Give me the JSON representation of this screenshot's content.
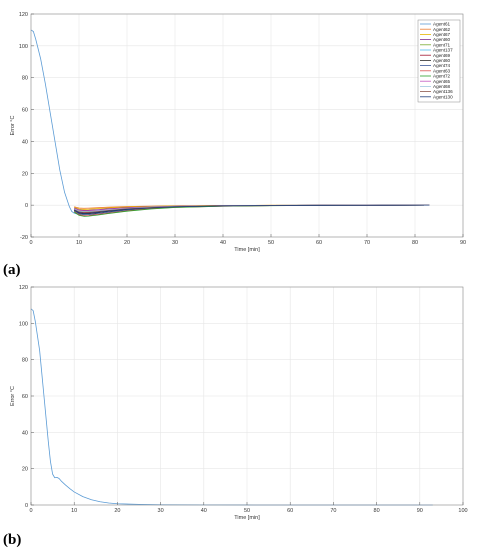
{
  "panels": [
    {
      "label": "(a)"
    },
    {
      "label": "(b)"
    }
  ],
  "chart_data": [
    {
      "type": "line",
      "panel": "(a)",
      "xlabel": "Time [min]",
      "ylabel": "Error °C",
      "xlim": [
        0,
        90
      ],
      "ylim": [
        -20,
        120
      ],
      "xticks": [
        0,
        10,
        20,
        30,
        40,
        50,
        60,
        70,
        80,
        90
      ],
      "yticks": [
        -20,
        0,
        20,
        40,
        60,
        80,
        100,
        120
      ],
      "grid": true,
      "legend_position": "top-right",
      "series": [
        {
          "name": "Agent61",
          "color": "#5b9bd5",
          "points": [
            [
              0,
              110
            ],
            [
              0.5,
              109
            ],
            [
              1,
              104
            ],
            [
              2,
              92
            ],
            [
              3,
              76
            ],
            [
              4,
              58
            ],
            [
              5,
              40
            ],
            [
              6,
              22
            ],
            [
              7,
              8
            ],
            [
              8,
              -1
            ],
            [
              8.5,
              -4
            ],
            [
              9,
              -5
            ],
            [
              9.5,
              -5.5
            ],
            [
              10,
              -5.8
            ],
            [
              11,
              -5.2
            ],
            [
              12,
              -4.6
            ],
            [
              14,
              -3.6
            ],
            [
              16,
              -2.8
            ],
            [
              20,
              -1.8
            ],
            [
              25,
              -1.1
            ],
            [
              30,
              -0.7
            ],
            [
              40,
              -0.3
            ],
            [
              50,
              -0.15
            ],
            [
              60,
              -0.08
            ],
            [
              70,
              -0.04
            ],
            [
              83,
              0
            ]
          ]
        },
        {
          "name": "Agent62",
          "color": "#ed7d31",
          "points": [
            [
              9,
              -1.0
            ],
            [
              10,
              -1.8
            ],
            [
              11,
              -2.0
            ],
            [
              12,
              -1.9
            ],
            [
              14,
              -1.6
            ],
            [
              16,
              -1.3
            ],
            [
              20,
              -0.9
            ],
            [
              25,
              -0.6
            ],
            [
              30,
              -0.4
            ],
            [
              40,
              -0.2
            ],
            [
              50,
              -0.1
            ],
            [
              60,
              -0.05
            ],
            [
              70,
              -0.02
            ],
            [
              83,
              0
            ]
          ]
        },
        {
          "name": "Agent67",
          "color": "#e6b800",
          "points": [
            [
              9,
              -1.4
            ],
            [
              10,
              -2.4
            ],
            [
              11,
              -2.7
            ],
            [
              12,
              -2.6
            ],
            [
              14,
              -2.2
            ],
            [
              16,
              -1.8
            ],
            [
              20,
              -1.2
            ],
            [
              25,
              -0.8
            ],
            [
              30,
              -0.5
            ],
            [
              40,
              -0.25
            ],
            [
              50,
              -0.12
            ],
            [
              60,
              -0.06
            ],
            [
              70,
              -0.03
            ],
            [
              83,
              0
            ]
          ]
        },
        {
          "name": "Agent60",
          "color": "#7e2f8e",
          "points": [
            [
              9,
              -1.8
            ],
            [
              10,
              -3.0
            ],
            [
              11,
              -3.3
            ],
            [
              12,
              -3.2
            ],
            [
              14,
              -2.8
            ],
            [
              16,
              -2.3
            ],
            [
              20,
              -1.6
            ],
            [
              25,
              -1.0
            ],
            [
              30,
              -0.7
            ],
            [
              40,
              -0.3
            ],
            [
              50,
              -0.15
            ],
            [
              60,
              -0.07
            ],
            [
              70,
              -0.03
            ],
            [
              83,
              0
            ]
          ]
        },
        {
          "name": "Agent71",
          "color": "#77ac30",
          "points": [
            [
              9,
              -2.2
            ],
            [
              10,
              -3.5
            ],
            [
              11,
              -3.9
            ],
            [
              12,
              -3.8
            ],
            [
              14,
              -3.3
            ],
            [
              16,
              -2.8
            ],
            [
              20,
              -1.9
            ],
            [
              25,
              -1.2
            ],
            [
              30,
              -0.8
            ],
            [
              40,
              -0.35
            ],
            [
              50,
              -0.17
            ],
            [
              60,
              -0.08
            ],
            [
              70,
              -0.04
            ],
            [
              83,
              0
            ]
          ]
        },
        {
          "name": "Agent137",
          "color": "#4dbeee",
          "points": [
            [
              9,
              -2.6
            ],
            [
              10,
              -4.0
            ],
            [
              11,
              -4.4
            ],
            [
              12,
              -4.3
            ],
            [
              14,
              -3.8
            ],
            [
              16,
              -3.2
            ],
            [
              20,
              -2.2
            ],
            [
              25,
              -1.4
            ],
            [
              30,
              -0.9
            ],
            [
              40,
              -0.4
            ],
            [
              50,
              -0.2
            ],
            [
              60,
              -0.1
            ],
            [
              70,
              -0.05
            ],
            [
              83,
              0
            ]
          ]
        },
        {
          "name": "Agent69",
          "color": "#a2142f",
          "points": [
            [
              9,
              -3.0
            ],
            [
              10,
              -4.5
            ],
            [
              11,
              -4.9
            ],
            [
              12,
              -4.8
            ],
            [
              14,
              -4.3
            ],
            [
              16,
              -3.6
            ],
            [
              20,
              -2.5
            ],
            [
              25,
              -1.6
            ],
            [
              30,
              -1.0
            ],
            [
              40,
              -0.45
            ],
            [
              50,
              -0.22
            ],
            [
              60,
              -0.11
            ],
            [
              70,
              -0.05
            ],
            [
              83,
              0
            ]
          ]
        },
        {
          "name": "Agent60",
          "color": "#2b2b2b",
          "points": [
            [
              9,
              -3.3
            ],
            [
              10,
              -5.0
            ],
            [
              11,
              -5.5
            ],
            [
              12,
              -5.4
            ],
            [
              14,
              -4.8
            ],
            [
              16,
              -4.0
            ],
            [
              20,
              -2.8
            ],
            [
              25,
              -1.8
            ],
            [
              30,
              -1.1
            ],
            [
              40,
              -0.5
            ],
            [
              50,
              -0.25
            ],
            [
              60,
              -0.12
            ],
            [
              70,
              -0.06
            ],
            [
              83,
              0
            ]
          ]
        },
        {
          "name": "Agent74",
          "color": "#3d5a99",
          "points": [
            [
              9,
              -3.6
            ],
            [
              10,
              -5.5
            ],
            [
              11,
              -6.0
            ],
            [
              12,
              -5.9
            ],
            [
              14,
              -5.3
            ],
            [
              16,
              -4.5
            ],
            [
              20,
              -3.1
            ],
            [
              25,
              -2.0
            ],
            [
              30,
              -1.3
            ],
            [
              40,
              -0.6
            ],
            [
              50,
              -0.28
            ],
            [
              60,
              -0.14
            ],
            [
              70,
              -0.07
            ],
            [
              83,
              0
            ]
          ]
        },
        {
          "name": "Agent63",
          "color": "#d9534f",
          "points": [
            [
              9,
              -4.0
            ],
            [
              10,
              -6.0
            ],
            [
              11,
              -6.6
            ],
            [
              12,
              -6.5
            ],
            [
              14,
              -5.8
            ],
            [
              16,
              -5.0
            ],
            [
              20,
              -3.5
            ],
            [
              25,
              -2.2
            ],
            [
              30,
              -1.4
            ],
            [
              40,
              -0.65
            ],
            [
              50,
              -0.3
            ],
            [
              60,
              -0.15
            ],
            [
              70,
              -0.07
            ],
            [
              83,
              0
            ]
          ]
        },
        {
          "name": "Agent72",
          "color": "#2ca02c",
          "points": [
            [
              9,
              -4.3
            ],
            [
              10,
              -6.4
            ],
            [
              11,
              -7.0
            ],
            [
              12,
              -6.9
            ],
            [
              14,
              -6.2
            ],
            [
              16,
              -5.3
            ],
            [
              20,
              -3.8
            ],
            [
              25,
              -2.4
            ],
            [
              30,
              -1.5
            ],
            [
              40,
              -0.7
            ],
            [
              50,
              -0.33
            ],
            [
              60,
              -0.16
            ],
            [
              70,
              -0.08
            ],
            [
              83,
              0
            ]
          ]
        },
        {
          "name": "Agent65",
          "color": "#c158c1",
          "points": [
            [
              9,
              -2.0
            ],
            [
              10,
              -3.2
            ],
            [
              11,
              -3.6
            ],
            [
              12,
              -3.5
            ],
            [
              14,
              -3.1
            ],
            [
              16,
              -2.6
            ],
            [
              20,
              -1.8
            ],
            [
              25,
              -1.1
            ],
            [
              30,
              -0.7
            ],
            [
              40,
              -0.33
            ],
            [
              50,
              -0.16
            ],
            [
              60,
              -0.08
            ],
            [
              70,
              -0.04
            ],
            [
              83,
              0
            ]
          ]
        },
        {
          "name": "Agent68",
          "color": "#9ecae1",
          "points": [
            [
              9,
              -2.4
            ],
            [
              10,
              -3.8
            ],
            [
              11,
              -4.2
            ],
            [
              12,
              -4.1
            ],
            [
              14,
              -3.6
            ],
            [
              16,
              -3.0
            ],
            [
              20,
              -2.1
            ],
            [
              25,
              -1.3
            ],
            [
              30,
              -0.85
            ],
            [
              40,
              -0.38
            ],
            [
              50,
              -0.18
            ],
            [
              60,
              -0.09
            ],
            [
              70,
              -0.04
            ],
            [
              83,
              0
            ]
          ]
        },
        {
          "name": "Agent136",
          "color": "#8c564b",
          "points": [
            [
              9,
              -2.8
            ],
            [
              10,
              -4.2
            ],
            [
              11,
              -4.6
            ],
            [
              12,
              -4.5
            ],
            [
              14,
              -4.0
            ],
            [
              16,
              -3.4
            ],
            [
              20,
              -2.3
            ],
            [
              25,
              -1.5
            ],
            [
              30,
              -0.95
            ],
            [
              40,
              -0.43
            ],
            [
              50,
              -0.21
            ],
            [
              60,
              -0.1
            ],
            [
              70,
              -0.05
            ],
            [
              83,
              0
            ]
          ]
        },
        {
          "name": "Agent130",
          "color": "#1f3f7a",
          "points": [
            [
              9,
              -3.1
            ],
            [
              10,
              -4.7
            ],
            [
              11,
              -5.2
            ],
            [
              12,
              -5.1
            ],
            [
              14,
              -4.5
            ],
            [
              16,
              -3.8
            ],
            [
              20,
              -2.6
            ],
            [
              25,
              -1.7
            ],
            [
              30,
              -1.05
            ],
            [
              40,
              -0.48
            ],
            [
              50,
              -0.23
            ],
            [
              60,
              -0.11
            ],
            [
              70,
              -0.05
            ],
            [
              83,
              0
            ]
          ]
        }
      ]
    },
    {
      "type": "line",
      "panel": "(b)",
      "xlabel": "Time [min]",
      "ylabel": "Error °C",
      "xlim": [
        0,
        100
      ],
      "ylim": [
        0,
        120
      ],
      "xticks": [
        0,
        10,
        20,
        30,
        40,
        50,
        60,
        70,
        80,
        90,
        100
      ],
      "yticks": [
        0,
        20,
        40,
        60,
        80,
        100,
        120
      ],
      "grid": true,
      "series": [
        {
          "color": "#5b9bd5",
          "points": [
            [
              0,
              108
            ],
            [
              0.5,
              107
            ],
            [
              1,
              101
            ],
            [
              2,
              85
            ],
            [
              3,
              60
            ],
            [
              4,
              35
            ],
            [
              4.5,
              24
            ],
            [
              5,
              17
            ],
            [
              5.5,
              15
            ],
            [
              6,
              15.2
            ],
            [
              6.5,
              14.6
            ],
            [
              7,
              13.2
            ],
            [
              8,
              11
            ],
            [
              9,
              9
            ],
            [
              10,
              7.2
            ],
            [
              12,
              4.6
            ],
            [
              14,
              2.9
            ],
            [
              16,
              1.8
            ],
            [
              18,
              1.1
            ],
            [
              20,
              0.7
            ],
            [
              25,
              0.3
            ],
            [
              30,
              0.15
            ],
            [
              40,
              0.05
            ],
            [
              50,
              0.02
            ],
            [
              60,
              0.01
            ],
            [
              80,
              0
            ],
            [
              93,
              0
            ]
          ]
        }
      ]
    }
  ]
}
